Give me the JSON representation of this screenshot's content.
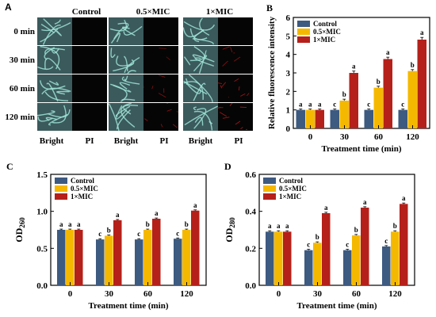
{
  "panelA": {
    "letter": "A",
    "columns": [
      "Control",
      "0.5×MIC",
      "1×MIC"
    ],
    "rows": [
      "0 min",
      "30 min",
      "60 min",
      "120 min"
    ],
    "bottom_labels": [
      "Bright",
      "PI",
      "Bright",
      "PI",
      "Bright",
      "PI"
    ],
    "colors": {
      "bright_bg": "#3b5a5c",
      "hyphae": "#9fe3d6",
      "pi_signal": "#c0181a",
      "dark": "#050505"
    },
    "pi_intensity": [
      [
        0,
        0,
        0
      ],
      [
        0,
        0.2,
        0.5
      ],
      [
        0,
        0.5,
        0.8
      ],
      [
        0,
        0.6,
        0.9
      ]
    ]
  },
  "chart_data": [
    {
      "letter": "B",
      "type": "bar",
      "categories": [
        "0",
        "30",
        "60",
        "120"
      ],
      "series": [
        {
          "name": "Control",
          "color": "#3d5a80",
          "values": [
            1.0,
            1.0,
            1.0,
            1.0
          ],
          "errors": [
            0.05,
            0.05,
            0.05,
            0.05
          ],
          "labels": [
            "a",
            "c",
            "c",
            "c"
          ]
        },
        {
          "name": "0.5×MIC",
          "color": "#f5b800",
          "values": [
            1.0,
            1.5,
            2.2,
            3.1
          ],
          "errors": [
            0.05,
            0.08,
            0.08,
            0.08
          ],
          "labels": [
            "a",
            "b",
            "b",
            "b"
          ]
        },
        {
          "name": "1×MIC",
          "color": "#b5201a",
          "values": [
            1.0,
            3.0,
            3.75,
            4.8
          ],
          "errors": [
            0.05,
            0.1,
            0.1,
            0.12
          ],
          "labels": [
            "a",
            "a",
            "a",
            "a"
          ]
        }
      ],
      "xlabel": "Treatment time (min)",
      "ylabel": "Relative fluorescence intensity",
      "ylim": [
        0,
        6
      ],
      "yticks": [
        "0",
        "1",
        "2",
        "3",
        "4",
        "5",
        "6"
      ],
      "legend": "top-left"
    },
    {
      "letter": "C",
      "type": "bar",
      "categories": [
        "0",
        "30",
        "60",
        "120"
      ],
      "series": [
        {
          "name": "Control",
          "color": "#3d5a80",
          "values": [
            0.75,
            0.62,
            0.62,
            0.63
          ],
          "errors": [
            0.01,
            0.01,
            0.01,
            0.01
          ],
          "labels": [
            "a",
            "c",
            "c",
            "c"
          ]
        },
        {
          "name": "0.5×MIC",
          "color": "#f5b800",
          "values": [
            0.75,
            0.67,
            0.75,
            0.75
          ],
          "errors": [
            0.01,
            0.01,
            0.01,
            0.01
          ],
          "labels": [
            "a",
            "b",
            "b",
            "b"
          ]
        },
        {
          "name": "1×MIC",
          "color": "#b5201a",
          "values": [
            0.75,
            0.88,
            0.9,
            1.01
          ],
          "errors": [
            0.01,
            0.01,
            0.01,
            0.01
          ],
          "labels": [
            "a",
            "a",
            "a",
            "a"
          ]
        }
      ],
      "xlabel": "Treatment time (min)",
      "ylabel_main": "OD",
      "ylabel_sub": "260",
      "ylim": [
        0,
        1.5
      ],
      "yticks": [
        "0.0",
        "0.5",
        "1.0",
        "1.5"
      ],
      "legend": "top-left"
    },
    {
      "letter": "D",
      "type": "bar",
      "categories": [
        "0",
        "30",
        "60",
        "120"
      ],
      "series": [
        {
          "name": "Control",
          "color": "#3d5a80",
          "values": [
            0.29,
            0.19,
            0.19,
            0.21
          ],
          "errors": [
            0.005,
            0.005,
            0.005,
            0.005
          ],
          "labels": [
            "a",
            "c",
            "c",
            "c"
          ]
        },
        {
          "name": "0.5×MIC",
          "color": "#f5b800",
          "values": [
            0.29,
            0.23,
            0.27,
            0.29
          ],
          "errors": [
            0.005,
            0.005,
            0.005,
            0.005
          ],
          "labels": [
            "a",
            "b",
            "b",
            "b"
          ]
        },
        {
          "name": "1×MIC",
          "color": "#b5201a",
          "values": [
            0.29,
            0.39,
            0.42,
            0.44
          ],
          "errors": [
            0.005,
            0.005,
            0.005,
            0.005
          ],
          "labels": [
            "a",
            "a",
            "a",
            "a"
          ]
        }
      ],
      "xlabel": "Treatment time (min)",
      "ylabel_main": "OD",
      "ylabel_sub": "280",
      "ylim": [
        0,
        0.6
      ],
      "yticks": [
        "0.0",
        "0.2",
        "0.4",
        "0.6"
      ],
      "legend": "top-left"
    }
  ]
}
